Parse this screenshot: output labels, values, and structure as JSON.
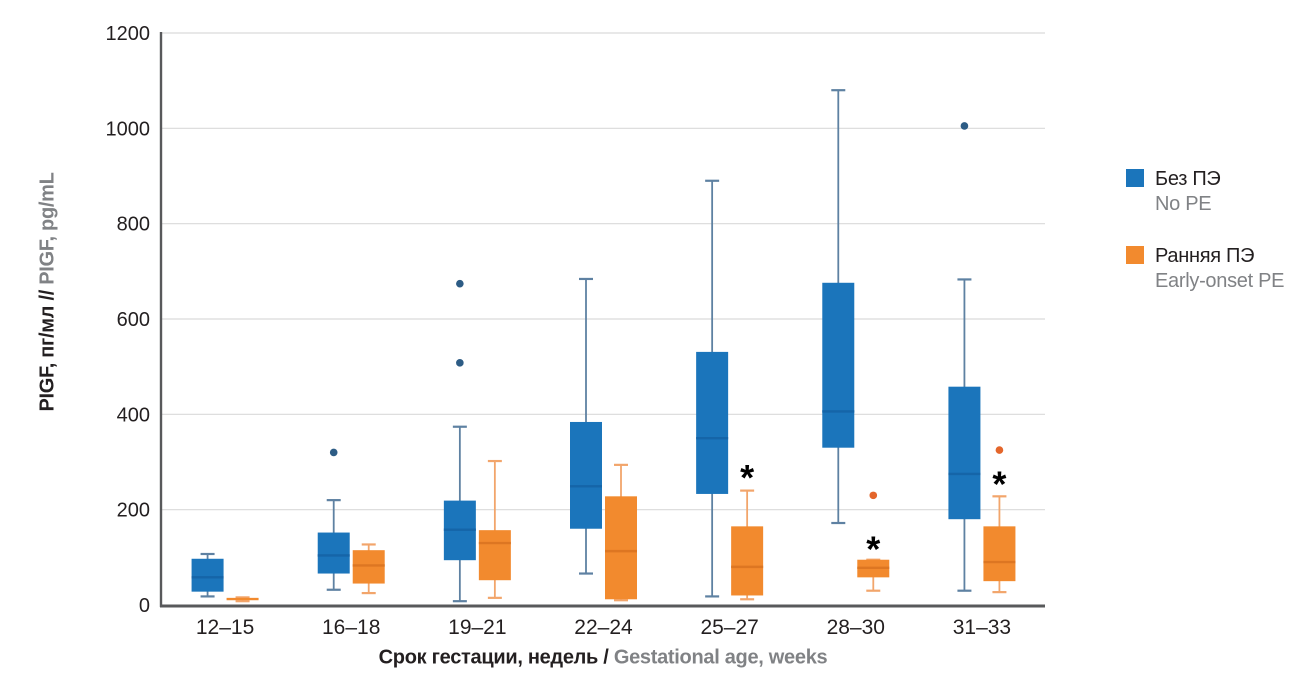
{
  "chart_data": {
    "type": "boxplot",
    "ylabel_ru": "PIGF, пг/мл //",
    "ylabel_en": "PIGF, pg/mL",
    "xlabel_ru": "Срок гестации, недель /",
    "xlabel_en": "Gestational age, weeks",
    "y_axis": {
      "min": 0,
      "max": 1200,
      "tick_step": 200,
      "ticks": [
        0,
        200,
        400,
        600,
        800,
        1000,
        1200
      ]
    },
    "categories": [
      "12–15",
      "16–18",
      "19–21",
      "22–24",
      "25–27",
      "28–30",
      "31–33"
    ],
    "grid": true,
    "legend_position": "right",
    "colors": {
      "grid": "#DADADA",
      "axis": "#58595B",
      "text_dark": "#231F20",
      "text_gray": "#808285",
      "annotation": "#000000"
    },
    "series": [
      {
        "name_ru": "Без ПЭ",
        "name_en": "No PE",
        "color": "#1B75BB",
        "median_color": "#1565A8",
        "whisker_color": "#5E81A2",
        "outlier_color": "#2D5C85",
        "boxes": [
          {
            "low": 18,
            "q1": 28,
            "median": 58,
            "q3": 97,
            "high": 107,
            "outliers": []
          },
          {
            "low": 32,
            "q1": 66,
            "median": 104,
            "q3": 152,
            "high": 220,
            "outliers": [
              320
            ]
          },
          {
            "low": 8,
            "q1": 94,
            "median": 158,
            "q3": 219,
            "high": 374,
            "outliers": [
              508,
              674
            ]
          },
          {
            "low": 66,
            "q1": 160,
            "median": 249,
            "q3": 384,
            "high": 684,
            "outliers": []
          },
          {
            "low": 18,
            "q1": 233,
            "median": 350,
            "q3": 531,
            "high": 890,
            "outliers": []
          },
          {
            "low": 172,
            "q1": 330,
            "median": 406,
            "q3": 676,
            "high": 1080,
            "outliers": []
          },
          {
            "low": 30,
            "q1": 180,
            "median": 275,
            "q3": 458,
            "high": 683,
            "outliers": [
              1005
            ]
          }
        ]
      },
      {
        "name_ru": "Ранняя ПЭ",
        "name_en": "Early-onset PE",
        "color": "#F28A2E",
        "median_color": "#DD7622",
        "whisker_color": "#F2A56B",
        "outlier_color": "#E4662B",
        "boxes": [
          {
            "low": 8,
            "q1": 10,
            "median": 12,
            "q3": 15,
            "high": 16,
            "outliers": []
          },
          {
            "low": 25,
            "q1": 45,
            "median": 83,
            "q3": 115,
            "high": 127,
            "outliers": []
          },
          {
            "low": 15,
            "q1": 52,
            "median": 130,
            "q3": 157,
            "high": 302,
            "outliers": []
          },
          {
            "low": 10,
            "q1": 12,
            "median": 113,
            "q3": 228,
            "high": 294,
            "outliers": []
          },
          {
            "low": 12,
            "q1": 20,
            "median": 80,
            "q3": 165,
            "high": 240,
            "outliers": []
          },
          {
            "low": 30,
            "q1": 58,
            "median": 78,
            "q3": 95,
            "high": 95,
            "outliers": [
              230
            ]
          },
          {
            "low": 27,
            "q1": 50,
            "median": 90,
            "q3": 165,
            "high": 228,
            "outliers": [
              325
            ]
          }
        ]
      }
    ],
    "annotations": [
      {
        "category_index": 4,
        "series": 1,
        "value": 285,
        "symbol": "*"
      },
      {
        "category_index": 5,
        "series": 1,
        "value": 135,
        "symbol": "*"
      },
      {
        "category_index": 6,
        "series": 1,
        "value": 272,
        "symbol": "*"
      }
    ]
  }
}
